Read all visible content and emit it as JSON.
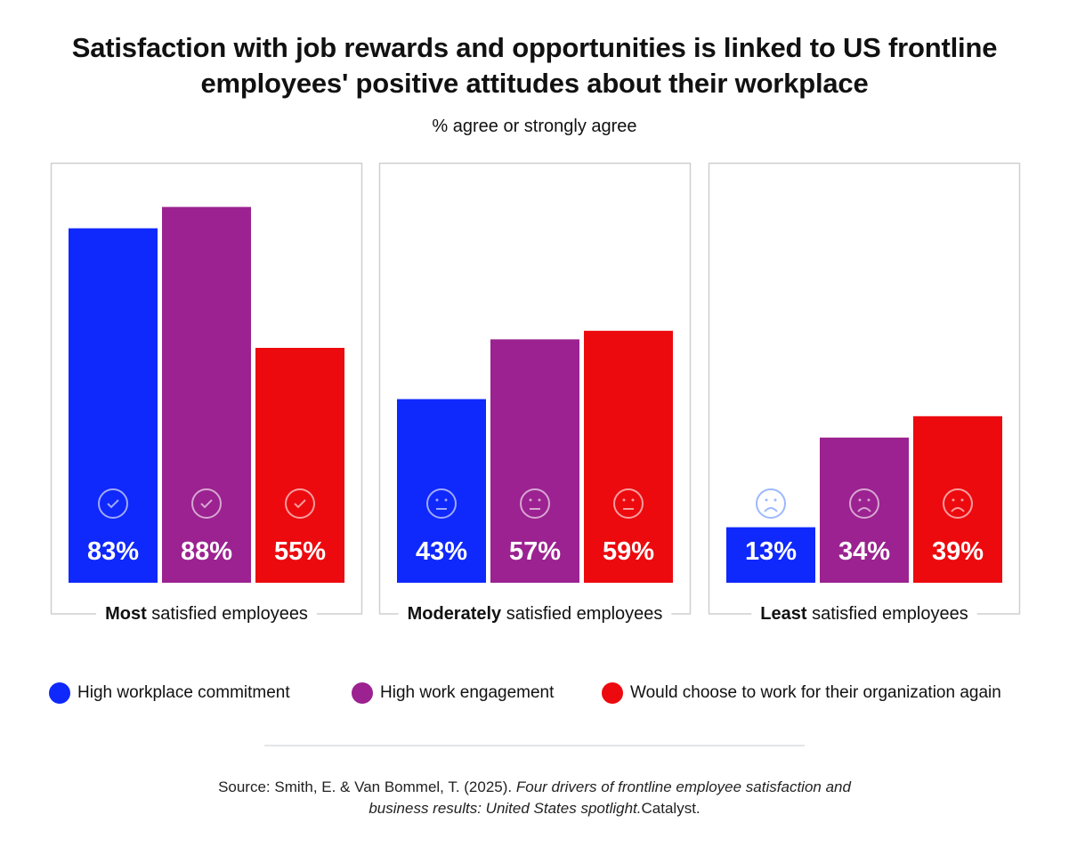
{
  "chart_data": {
    "type": "bar",
    "title": "Satisfaction with job rewards and opportunities is linked to US frontline employees' positive attitudes about their workplace",
    "subtitle": "% agree or strongly agree",
    "ylim": [
      0,
      100
    ],
    "grid": false,
    "legend_placement": "bottom",
    "groups": [
      {
        "label_bold": "Most",
        "label_rest": " satisfied employees",
        "icon": "check-circle-icon"
      },
      {
        "label_bold": "Moderately",
        "label_rest": " satisfied employees",
        "icon": "neutral-face-icon"
      },
      {
        "label_bold": "Least",
        "label_rest": " satisfied employees",
        "icon": "sad-face-icon"
      }
    ],
    "series": [
      {
        "name": "High workplace commitment",
        "color": "#0f28fb",
        "values": [
          83,
          43,
          13
        ],
        "labels": [
          "83%",
          "43%",
          "13%"
        ]
      },
      {
        "name": "High work engagement",
        "color": "#9b2290",
        "values": [
          88,
          57,
          34
        ],
        "labels": [
          "88%",
          "57%",
          "34%"
        ]
      },
      {
        "name": "Would choose to work for their organization again",
        "color": "#ec0a0e",
        "values": [
          55,
          59,
          39
        ],
        "labels": [
          "55%",
          "59%",
          "39%"
        ]
      }
    ]
  },
  "source": {
    "prefix": "Source: Smith, E. & Van Bommel, T. (2025). ",
    "italic1": "Four drivers of frontline employee satisfaction and",
    "italic2": "business results: United States spotlight.",
    "suffix": "Catalyst."
  }
}
